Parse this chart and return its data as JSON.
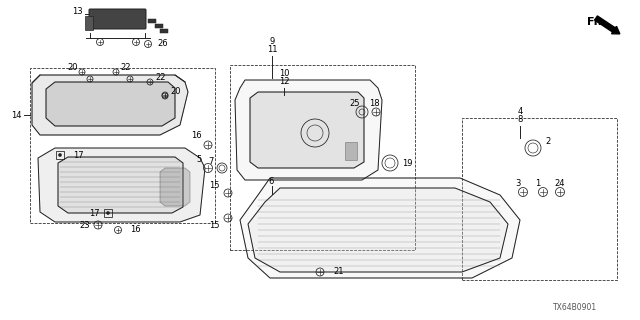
{
  "background_color": "#ffffff",
  "diagram_id": "TX64B0901",
  "line_color": "#222222",
  "label_fontsize": 6.0,
  "lw": 0.7
}
